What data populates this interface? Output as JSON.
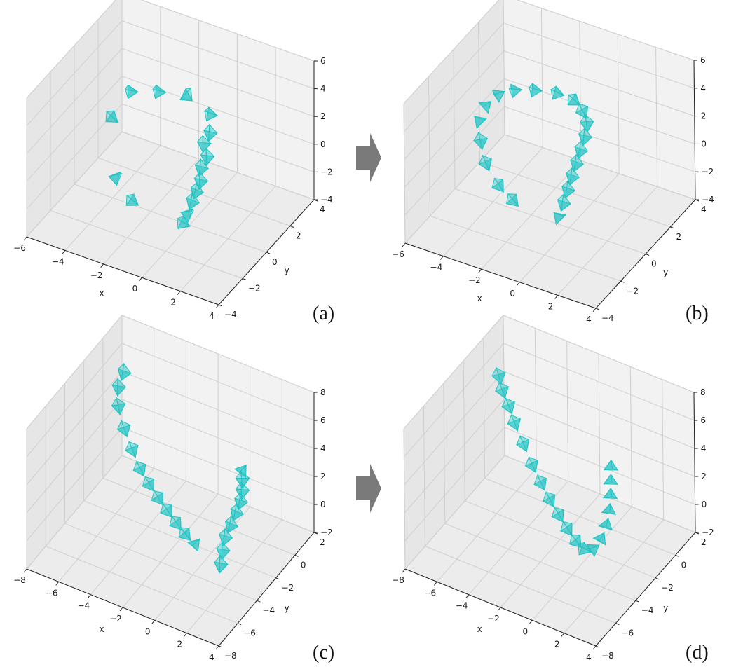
{
  "figure": {
    "panel_labels": [
      "(a)",
      "(b)",
      "(c)",
      "(d)"
    ],
    "arrow_icon": "right-arrow-icon",
    "pyramid_color": "#20c4c4",
    "pane_colors": {
      "back": "#f2f2f2",
      "side": "#e6e6e6",
      "floor": "#ececec",
      "grid": "#cfcfcf"
    }
  },
  "chart_data": [
    {
      "type": "scatter",
      "title": "",
      "marker": "camera-pyramid",
      "xlabel": "x",
      "ylabel": "y",
      "zlabel": "",
      "x_ticks": [
        "−6",
        "−4",
        "−2",
        "0",
        "2",
        "4"
      ],
      "y_ticks": [
        "4",
        "2",
        "0",
        "−2",
        "−4"
      ],
      "z_ticks": [
        "6",
        "4",
        "2",
        "0",
        "−2",
        "−4"
      ],
      "xlim": [
        -6,
        4
      ],
      "ylim": [
        -4,
        4
      ],
      "zlim": [
        -4,
        6
      ],
      "grid": true,
      "points": [
        [
          -3.8,
          1.2,
          2.6
        ],
        [
          -2.6,
          1.6,
          2.8
        ],
        [
          -1.4,
          2.0,
          2.7
        ],
        [
          -4.4,
          0.6,
          1.0
        ],
        [
          -0.4,
          2.4,
          1.5
        ],
        [
          -0.3,
          2.2,
          0.3
        ],
        [
          -0.5,
          2.0,
          -0.4
        ],
        [
          -0.2,
          1.8,
          -1.0
        ],
        [
          -0.4,
          1.6,
          -1.7
        ],
        [
          -0.3,
          1.4,
          -2.4
        ],
        [
          -0.4,
          1.2,
          -3.0
        ],
        [
          -0.5,
          1.0,
          -3.6
        ],
        [
          -0.6,
          0.8,
          -4.3
        ],
        [
          -3.6,
          -0.4,
          -2.0
        ],
        [
          -2.6,
          -0.6,
          -3.0
        ],
        [
          -0.7,
          0.6,
          -4.8
        ]
      ]
    },
    {
      "type": "scatter",
      "title": "",
      "marker": "camera-pyramid",
      "xlabel": "x",
      "ylabel": "y",
      "zlabel": "",
      "x_ticks": [
        "−6",
        "−4",
        "−2",
        "0",
        "2",
        "4"
      ],
      "y_ticks": [
        "4",
        "2",
        "0",
        "−2",
        "−4"
      ],
      "z_ticks": [
        "6",
        "4",
        "2",
        "0",
        "−2",
        "−4"
      ],
      "xlim": [
        -6,
        4
      ],
      "ylim": [
        -4,
        4
      ],
      "zlim": [
        -4,
        6
      ],
      "grid": true,
      "points": [
        [
          -4.6,
          0.4,
          2.2
        ],
        [
          -4.2,
          0.8,
          2.8
        ],
        [
          -3.6,
          1.2,
          3.0
        ],
        [
          -2.8,
          1.6,
          3.0
        ],
        [
          -1.9,
          2.0,
          2.8
        ],
        [
          -1.2,
          2.3,
          2.3
        ],
        [
          -0.8,
          2.4,
          1.6
        ],
        [
          -0.6,
          2.4,
          0.8
        ],
        [
          -0.6,
          2.2,
          0.0
        ],
        [
          -0.7,
          2.0,
          -0.8
        ],
        [
          -0.8,
          1.8,
          -1.6
        ],
        [
          -0.9,
          1.6,
          -2.4
        ],
        [
          -1.0,
          1.4,
          -3.2
        ],
        [
          -1.1,
          1.2,
          -4.0
        ],
        [
          -1.2,
          1.0,
          -4.8
        ],
        [
          -4.8,
          0.2,
          1.2
        ],
        [
          -4.6,
          0.0,
          0.0
        ],
        [
          -4.2,
          -0.2,
          -1.2
        ],
        [
          -3.4,
          -0.4,
          -2.2
        ],
        [
          -2.6,
          -0.5,
          -2.8
        ]
      ]
    },
    {
      "type": "scatter",
      "title": "",
      "marker": "camera-pyramid",
      "xlabel": "x",
      "ylabel": "y",
      "zlabel": "",
      "x_ticks": [
        "−8",
        "−6",
        "−4",
        "−2",
        "0",
        "2",
        "4"
      ],
      "y_ticks": [
        "2",
        "0",
        "−2",
        "−4",
        "−6",
        "−8"
      ],
      "z_ticks": [
        "8",
        "6",
        "4",
        "2",
        "0",
        "−2"
      ],
      "xlim": [
        -8,
        4
      ],
      "ylim": [
        -8,
        2
      ],
      "zlim": [
        -2,
        8
      ],
      "grid": true,
      "points": [
        [
          -7.0,
          0.5,
          5.5
        ],
        [
          -7.2,
          0.3,
          4.5
        ],
        [
          -7.0,
          0.0,
          3.5
        ],
        [
          -6.4,
          -0.4,
          2.5
        ],
        [
          -5.6,
          -0.9,
          1.8
        ],
        [
          -4.8,
          -1.4,
          1.2
        ],
        [
          -4.0,
          -1.8,
          0.8
        ],
        [
          -3.2,
          -2.2,
          0.5
        ],
        [
          -2.4,
          -2.6,
          0.3
        ],
        [
          -1.6,
          -3.0,
          0.1
        ],
        [
          -0.8,
          -3.4,
          0.0
        ],
        [
          0.0,
          -3.8,
          0.0
        ],
        [
          1.4,
          -1.2,
          3.8
        ],
        [
          1.5,
          -1.3,
          3.2
        ],
        [
          1.6,
          -1.5,
          2.6
        ],
        [
          1.6,
          -1.7,
          2.0
        ],
        [
          1.5,
          -2.0,
          1.4
        ],
        [
          1.4,
          -2.4,
          0.8
        ],
        [
          1.3,
          -2.8,
          0.2
        ],
        [
          1.4,
          -3.2,
          -0.4
        ],
        [
          1.5,
          -3.6,
          -1.0
        ]
      ]
    },
    {
      "type": "scatter",
      "title": "",
      "marker": "camera-pyramid",
      "xlabel": "x",
      "ylabel": "y",
      "zlabel": "",
      "x_ticks": [
        "−8",
        "−6",
        "−4",
        "−2",
        "0",
        "2",
        "4"
      ],
      "y_ticks": [
        "2",
        "0",
        "−2",
        "−4",
        "−6",
        "−8"
      ],
      "z_ticks": [
        "8",
        "6",
        "4",
        "2",
        "0",
        "−2"
      ],
      "xlim": [
        -8,
        4
      ],
      "ylim": [
        -8,
        2
      ],
      "zlim": [
        -2,
        8
      ],
      "grid": true,
      "points": [
        [
          -7.4,
          0.6,
          5.0
        ],
        [
          -7.0,
          0.3,
          4.4
        ],
        [
          -6.4,
          0.0,
          3.8
        ],
        [
          -5.8,
          -0.4,
          3.2
        ],
        [
          -5.0,
          -0.8,
          2.4
        ],
        [
          -4.2,
          -1.2,
          1.6
        ],
        [
          -3.4,
          -1.6,
          1.0
        ],
        [
          -2.6,
          -2.0,
          0.5
        ],
        [
          -1.8,
          -2.4,
          0.1
        ],
        [
          -1.0,
          -2.8,
          -0.2
        ],
        [
          -0.2,
          -3.2,
          -0.4
        ],
        [
          0.4,
          -3.4,
          -0.5
        ],
        [
          0.9,
          -3.3,
          -0.3
        ],
        [
          1.2,
          -3.0,
          0.3
        ],
        [
          1.3,
          -2.6,
          1.0
        ],
        [
          1.3,
          -2.3,
          1.8
        ],
        [
          1.2,
          -2.0,
          2.6
        ],
        [
          1.1,
          -1.8,
          3.4
        ],
        [
          1.0,
          -1.6,
          4.2
        ]
      ]
    }
  ]
}
